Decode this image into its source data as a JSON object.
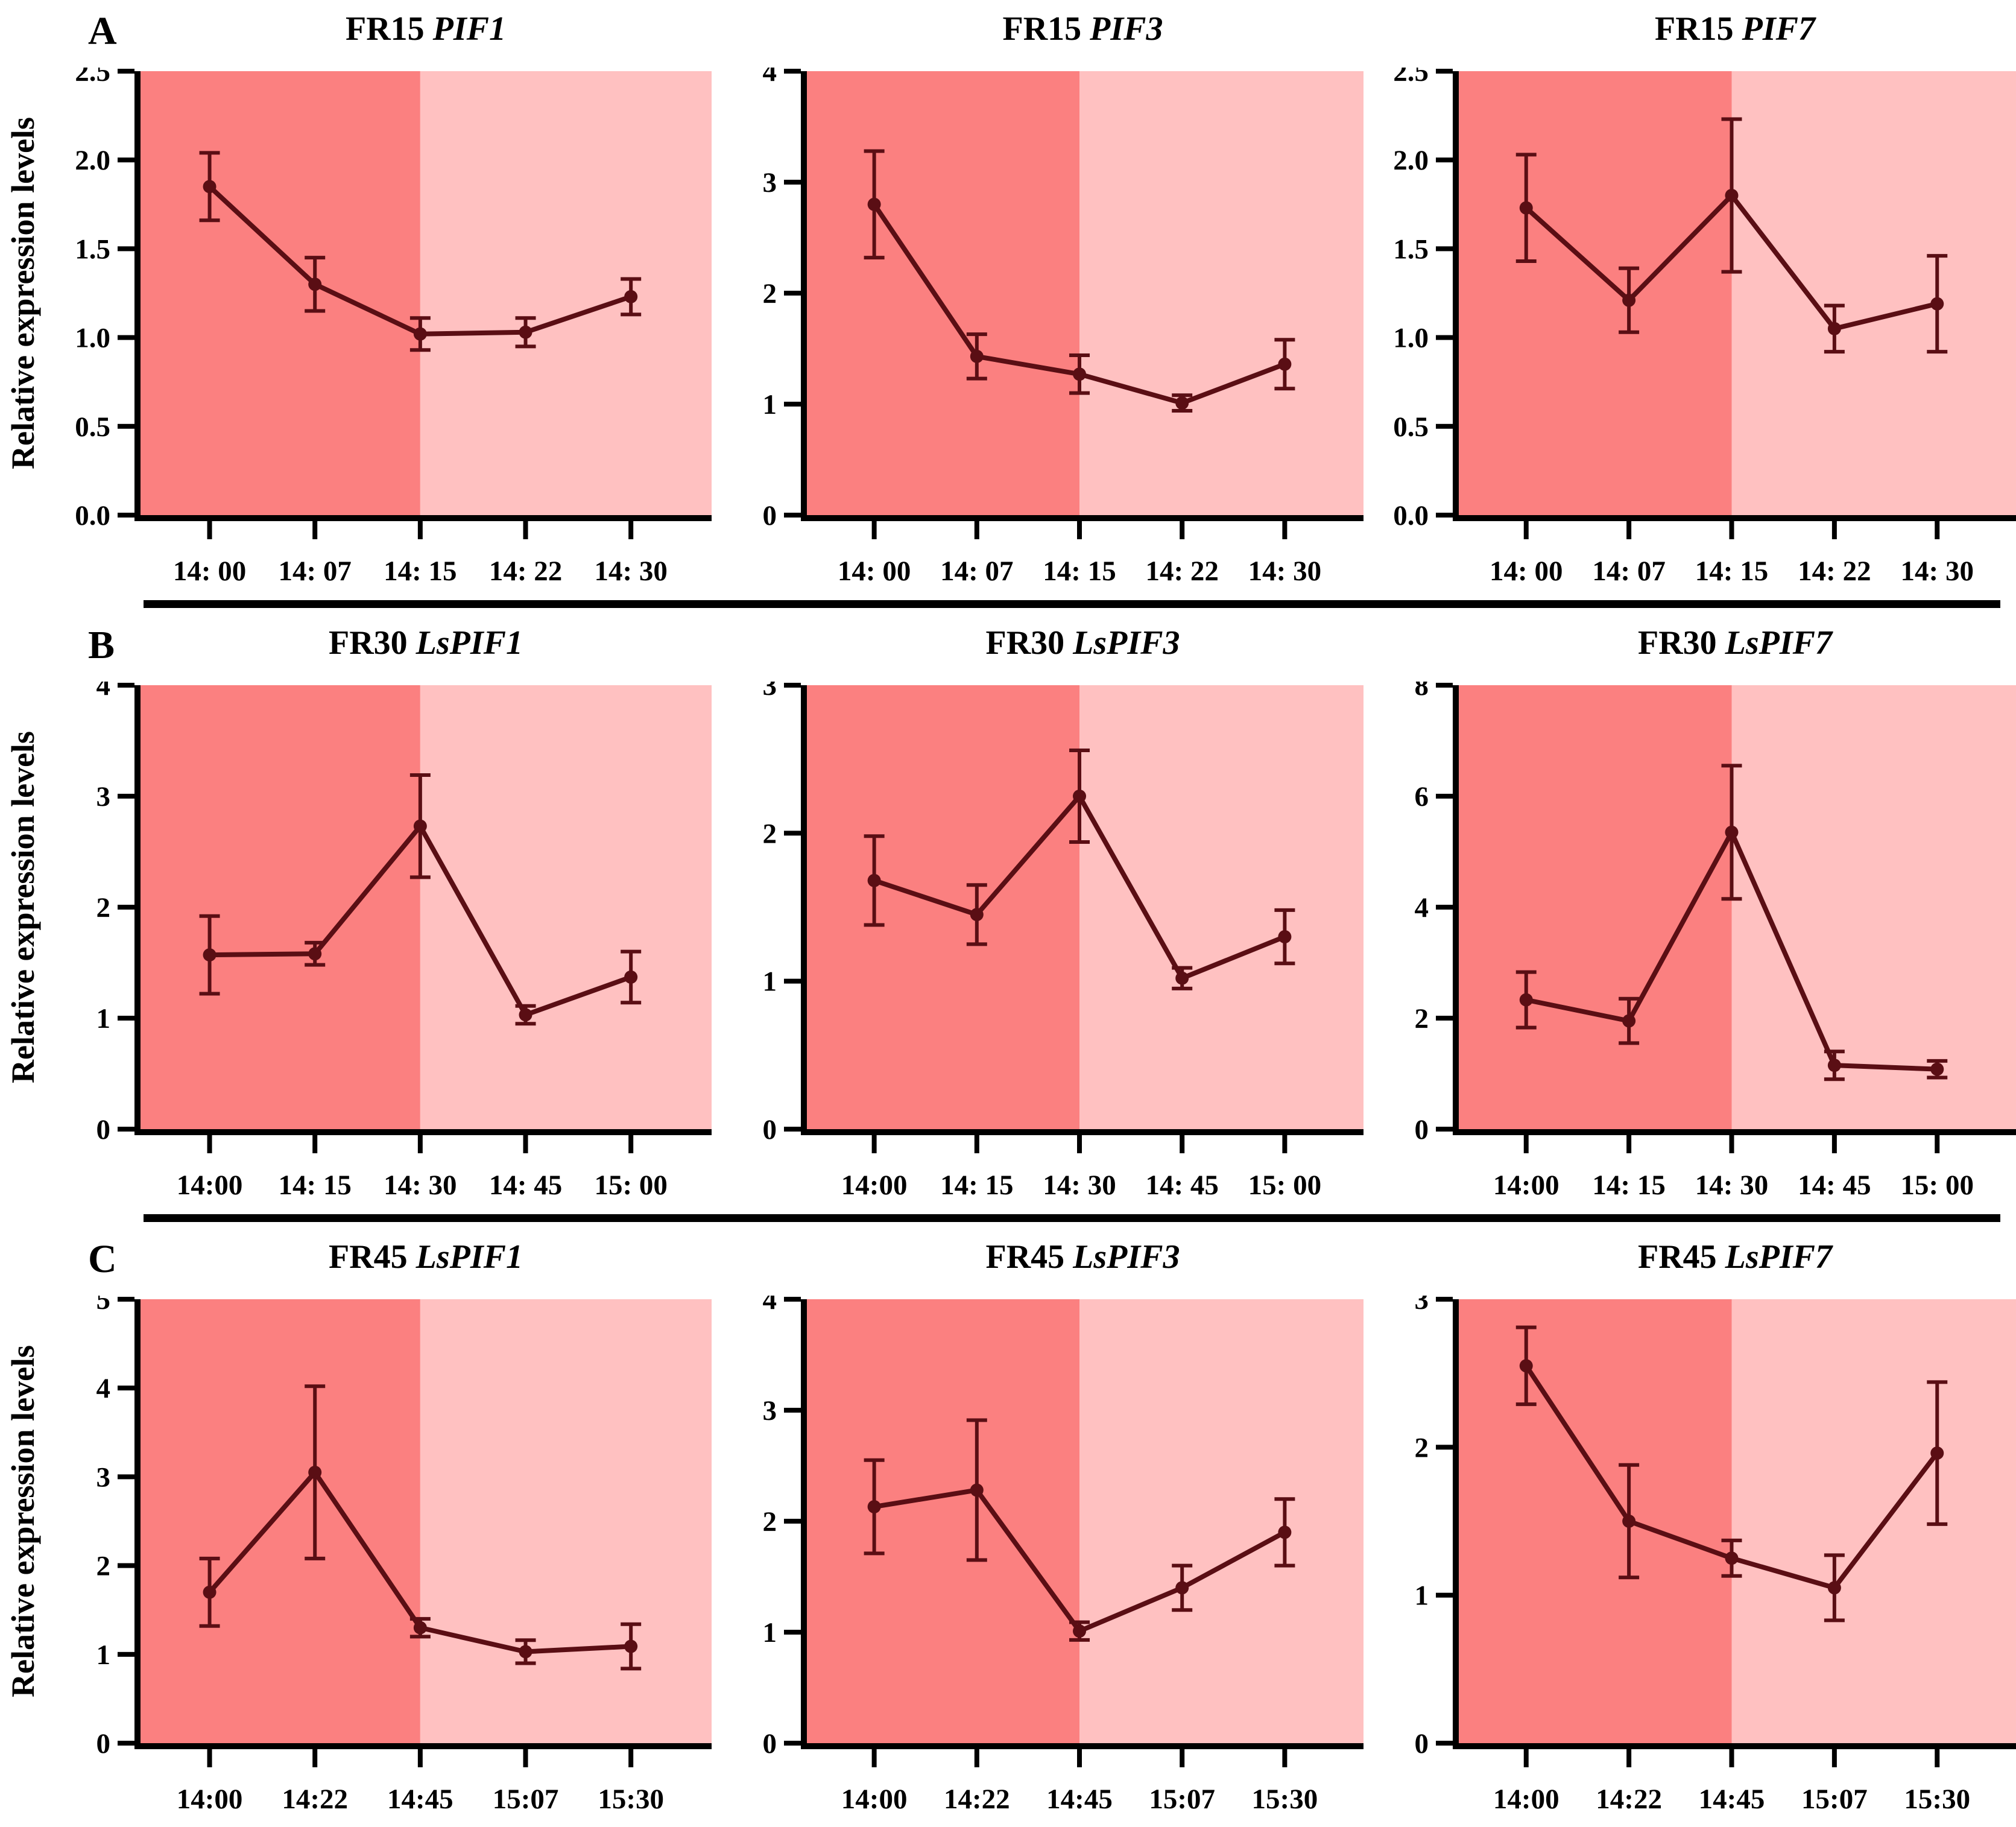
{
  "figure": {
    "ylabel": "Relative expression levels",
    "panels": [
      "A",
      "B",
      "C"
    ],
    "colors": {
      "bg_dark": "#FB8080",
      "bg_light": "#FFC1C1",
      "line": "#5A0E14",
      "axis": "#000000"
    }
  },
  "chart_data": [
    {
      "type": "line",
      "panel": "A",
      "title": "FR15 PIF1",
      "title_prefix": "FR15",
      "title_gene": "PIF1",
      "categories": [
        "14: 00",
        "14: 07",
        "14: 15",
        "14: 22",
        "14: 30"
      ],
      "values": [
        1.85,
        1.3,
        1.02,
        1.03,
        1.23
      ],
      "errors": [
        0.19,
        0.15,
        0.09,
        0.08,
        0.1
      ],
      "ylim": [
        0,
        2.5
      ],
      "yticks": [
        "0.0",
        "0.5",
        "1.0",
        "1.5",
        "2.0",
        "2.5"
      ],
      "ylabel": "Relative expression levels",
      "xlabel": "",
      "shade_boundary_index": 2
    },
    {
      "type": "line",
      "panel": "A",
      "title": "FR15 PIF3",
      "title_prefix": "FR15",
      "title_gene": "PIF3",
      "categories": [
        "14: 00",
        "14: 07",
        "14: 15",
        "14: 22",
        "14: 30"
      ],
      "values": [
        2.8,
        1.43,
        1.27,
        1.01,
        1.36
      ],
      "errors": [
        0.48,
        0.2,
        0.17,
        0.07,
        0.22
      ],
      "ylim": [
        0,
        4
      ],
      "yticks": [
        "0",
        "1",
        "2",
        "3",
        "4"
      ],
      "ylabel": "",
      "xlabel": "",
      "shade_boundary_index": 2
    },
    {
      "type": "line",
      "panel": "A",
      "title": "FR15 PIF7",
      "title_prefix": "FR15",
      "title_gene": "PIF7",
      "categories": [
        "14: 00",
        "14: 07",
        "14: 15",
        "14: 22",
        "14: 30"
      ],
      "values": [
        1.73,
        1.21,
        1.8,
        1.05,
        1.19
      ],
      "errors": [
        0.3,
        0.18,
        0.43,
        0.13,
        0.27
      ],
      "ylim": [
        0,
        2.5
      ],
      "yticks": [
        "0.0",
        "0.5",
        "1.0",
        "1.5",
        "2.0",
        "2.5"
      ],
      "ylabel": "",
      "xlabel": "",
      "shade_boundary_index": 2
    },
    {
      "type": "line",
      "panel": "B",
      "title": "FR30 LsPIF1",
      "title_prefix": "FR30",
      "title_gene": "LsPIF1",
      "categories": [
        "14:00",
        "14: 15",
        "14: 30",
        "14: 45",
        "15: 00"
      ],
      "values": [
        1.57,
        1.58,
        2.73,
        1.03,
        1.37
      ],
      "errors": [
        0.35,
        0.1,
        0.46,
        0.08,
        0.23
      ],
      "ylim": [
        0,
        4
      ],
      "yticks": [
        "0",
        "1",
        "2",
        "3",
        "4"
      ],
      "ylabel": "Relative expression levels",
      "xlabel": "",
      "shade_boundary_index": 2
    },
    {
      "type": "line",
      "panel": "B",
      "title": "FR30 LsPIF3",
      "title_prefix": "FR30",
      "title_gene": "LsPIF3",
      "categories": [
        "14:00",
        "14: 15",
        "14: 30",
        "14: 45",
        "15: 00"
      ],
      "values": [
        1.68,
        1.45,
        2.25,
        1.02,
        1.3
      ],
      "errors": [
        0.3,
        0.2,
        0.31,
        0.07,
        0.18
      ],
      "ylim": [
        0,
        3
      ],
      "yticks": [
        "0",
        "1",
        "2",
        "3"
      ],
      "ylabel": "",
      "xlabel": "",
      "shade_boundary_index": 2
    },
    {
      "type": "line",
      "panel": "B",
      "title": "FR30 LsPIF7",
      "title_prefix": "FR30",
      "title_gene": "LsPIF7",
      "categories": [
        "14:00",
        "14: 15",
        "14: 30",
        "14: 45",
        "15: 00"
      ],
      "values": [
        2.33,
        1.95,
        5.35,
        1.15,
        1.08
      ],
      "errors": [
        0.5,
        0.4,
        1.2,
        0.25,
        0.15
      ],
      "ylim": [
        0,
        8
      ],
      "yticks": [
        "0",
        "2",
        "4",
        "6",
        "8"
      ],
      "ylabel": "",
      "xlabel": "",
      "shade_boundary_index": 2
    },
    {
      "type": "line",
      "panel": "C",
      "title": "FR45 LsPIF1",
      "title_prefix": "FR45",
      "title_gene": "LsPIF1",
      "categories": [
        "14:00",
        "14:22",
        "14:45",
        "15:07",
        "15:30"
      ],
      "values": [
        1.7,
        3.05,
        1.3,
        1.03,
        1.09
      ],
      "errors": [
        0.38,
        0.97,
        0.1,
        0.13,
        0.25
      ],
      "ylim": [
        0,
        5
      ],
      "yticks": [
        "0",
        "1",
        "2",
        "3",
        "4",
        "5"
      ],
      "ylabel": "Relative expression levels",
      "xlabel": "",
      "shade_boundary_index": 2
    },
    {
      "type": "line",
      "panel": "C",
      "title": "FR45 LsPIF3",
      "title_prefix": "FR45",
      "title_gene": "LsPIF3",
      "categories": [
        "14:00",
        "14:22",
        "14:45",
        "15:07",
        "15:30"
      ],
      "values": [
        2.13,
        2.28,
        1.01,
        1.4,
        1.9
      ],
      "errors": [
        0.42,
        0.63,
        0.08,
        0.2,
        0.3
      ],
      "ylim": [
        0,
        4
      ],
      "yticks": [
        "0",
        "1",
        "2",
        "3",
        "4"
      ],
      "ylabel": "",
      "xlabel": "",
      "shade_boundary_index": 2
    },
    {
      "type": "line",
      "panel": "C",
      "title": "FR45 LsPIF7",
      "title_prefix": "FR45",
      "title_gene": "LsPIF7",
      "categories": [
        "14:00",
        "14:22",
        "14:45",
        "15:07",
        "15:30"
      ],
      "values": [
        2.55,
        1.5,
        1.25,
        1.05,
        1.96
      ],
      "errors": [
        0.26,
        0.38,
        0.12,
        0.22,
        0.48
      ],
      "ylim": [
        0,
        3
      ],
      "yticks": [
        "0",
        "1",
        "2",
        "3"
      ],
      "ylabel": "",
      "xlabel": "",
      "shade_boundary_index": 2
    }
  ]
}
